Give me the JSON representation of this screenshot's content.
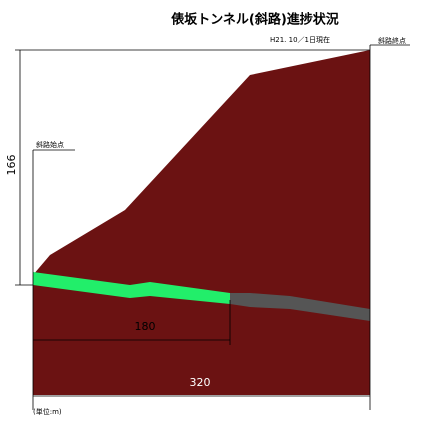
{
  "header": {
    "title": "俵坂トンネル(斜路)進捗状況",
    "date": "H21. 10／1日現在"
  },
  "labels": {
    "end": "斜路終点",
    "start": "斜路始点"
  },
  "dimensions": {
    "height": 166,
    "done": 180,
    "total": 320
  },
  "unit": "(単位:m)"
}
